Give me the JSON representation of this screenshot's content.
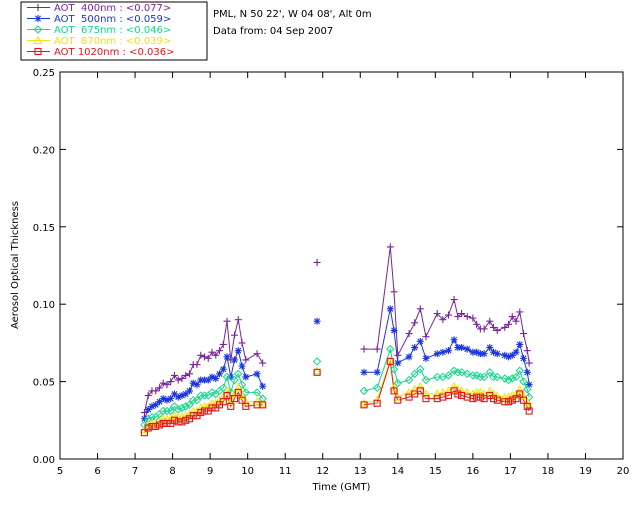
{
  "header": {
    "station": "PML, N 50 22', W 04 08', Alt 0m",
    "date_line": "Data from: 04 Sep 2007"
  },
  "chart_data": {
    "type": "scatter",
    "title": "",
    "xlabel": "Time (GMT)",
    "ylabel": "Aerosol Optical Thickness",
    "xlim": [
      5,
      20
    ],
    "ylim": [
      0,
      0.25
    ],
    "x_ticks": [
      5,
      6,
      7,
      8,
      9,
      10,
      11,
      12,
      13,
      14,
      15,
      16,
      17,
      18,
      19,
      20
    ],
    "y_ticks": [
      0.0,
      0.05,
      0.1,
      0.15,
      0.2,
      0.25
    ],
    "y_tick_labels": [
      "0.00",
      "0.05",
      "0.10",
      "0.15",
      "0.20",
      "0.25"
    ],
    "grid": false,
    "legend_position": "top-left, outside plot",
    "x": [
      7.25,
      7.35,
      7.45,
      7.55,
      7.65,
      7.75,
      7.85,
      7.95,
      8.05,
      8.15,
      8.25,
      8.35,
      8.45,
      8.55,
      8.65,
      8.75,
      8.85,
      8.95,
      9.05,
      9.15,
      9.25,
      9.35,
      9.45,
      9.55,
      9.65,
      9.75,
      9.85,
      9.95,
      10.25,
      10.4,
      11.85,
      13.1,
      13.45,
      13.8,
      13.9,
      14.0,
      14.3,
      14.45,
      14.6,
      14.75,
      15.05,
      15.2,
      15.35,
      15.5,
      15.6,
      15.7,
      15.85,
      16.0,
      16.1,
      16.2,
      16.3,
      16.45,
      16.55,
      16.65,
      16.85,
      16.95,
      17.05,
      17.15,
      17.25,
      17.35,
      17.45,
      17.5
    ],
    "series": [
      {
        "name": "AOT  400nm : <0.077>",
        "marker": "plus",
        "color": "#7a2596",
        "connected": true,
        "values": [
          0.03,
          0.041,
          0.044,
          0.044,
          0.046,
          0.049,
          0.048,
          0.05,
          0.054,
          0.051,
          0.052,
          0.054,
          0.055,
          0.061,
          0.061,
          0.067,
          0.066,
          0.065,
          0.069,
          0.067,
          0.07,
          0.074,
          0.089,
          0.064,
          0.08,
          0.09,
          0.075,
          0.064,
          0.068,
          0.062,
          0.127,
          0.071,
          0.071,
          0.137,
          0.108,
          0.067,
          0.081,
          0.088,
          0.097,
          0.079,
          0.094,
          0.09,
          0.093,
          0.103,
          0.092,
          0.094,
          0.092,
          0.091,
          0.087,
          0.084,
          0.084,
          0.089,
          0.085,
          0.083,
          0.085,
          0.087,
          0.092,
          0.089,
          0.095,
          0.081,
          0.07,
          0.062
        ]
      },
      {
        "name": "AOT  500nm : <0.059>",
        "marker": "asterisk",
        "color": "#1a35dd",
        "connected": true,
        "values": [
          0.026,
          0.032,
          0.034,
          0.035,
          0.037,
          0.039,
          0.038,
          0.039,
          0.042,
          0.04,
          0.041,
          0.042,
          0.044,
          0.049,
          0.048,
          0.051,
          0.051,
          0.051,
          0.053,
          0.052,
          0.055,
          0.058,
          0.066,
          0.053,
          0.064,
          0.07,
          0.06,
          0.053,
          0.055,
          0.047,
          0.089,
          0.056,
          0.056,
          0.097,
          0.083,
          0.062,
          0.066,
          0.072,
          0.076,
          0.065,
          0.068,
          0.069,
          0.07,
          0.077,
          0.072,
          0.072,
          0.071,
          0.069,
          0.069,
          0.068,
          0.068,
          0.072,
          0.069,
          0.068,
          0.067,
          0.066,
          0.067,
          0.069,
          0.074,
          0.065,
          0.056,
          0.048
        ]
      },
      {
        "name": "AOT  675nm : <0.046>",
        "marker": "diamond",
        "color": "#15d58a",
        "connected": true,
        "values": [
          0.022,
          0.026,
          0.027,
          0.027,
          0.029,
          0.031,
          0.031,
          0.031,
          0.034,
          0.032,
          0.033,
          0.034,
          0.035,
          0.038,
          0.038,
          0.041,
          0.041,
          0.041,
          0.043,
          0.042,
          0.044,
          0.046,
          0.053,
          0.043,
          0.051,
          0.055,
          0.048,
          0.043,
          0.043,
          0.039,
          0.063,
          0.044,
          0.046,
          0.071,
          0.058,
          0.049,
          0.051,
          0.055,
          0.058,
          0.051,
          0.053,
          0.053,
          0.054,
          0.057,
          0.056,
          0.056,
          0.055,
          0.054,
          0.054,
          0.053,
          0.053,
          0.056,
          0.053,
          0.053,
          0.052,
          0.051,
          0.052,
          0.053,
          0.057,
          0.05,
          0.045,
          0.04
        ]
      },
      {
        "name": "AOT  870nm : <0.039>",
        "marker": "triangle",
        "color": "#f2e00f",
        "connected": true,
        "values": [
          0.019,
          0.022,
          0.023,
          0.023,
          0.024,
          0.026,
          0.026,
          0.026,
          0.028,
          0.027,
          0.027,
          0.028,
          0.029,
          0.031,
          0.031,
          0.033,
          0.034,
          0.034,
          0.036,
          0.036,
          0.038,
          0.04,
          0.044,
          0.037,
          0.042,
          0.046,
          0.041,
          0.037,
          0.037,
          0.036,
          0.057,
          0.036,
          0.038,
          0.064,
          0.046,
          0.04,
          0.043,
          0.045,
          0.047,
          0.042,
          0.042,
          0.043,
          0.044,
          0.047,
          0.045,
          0.044,
          0.043,
          0.042,
          0.043,
          0.043,
          0.042,
          0.044,
          0.042,
          0.041,
          0.04,
          0.04,
          0.041,
          0.042,
          0.045,
          0.041,
          0.037,
          0.034
        ]
      },
      {
        "name": "AOT 1020nm : <0.036>",
        "marker": "square",
        "color": "#e0161b",
        "connected": true,
        "values": [
          0.017,
          0.02,
          0.021,
          0.021,
          0.022,
          0.023,
          0.023,
          0.023,
          0.025,
          0.024,
          0.024,
          0.025,
          0.026,
          0.028,
          0.028,
          0.03,
          0.031,
          0.031,
          0.033,
          0.033,
          0.035,
          0.037,
          0.041,
          0.034,
          0.039,
          0.043,
          0.038,
          0.034,
          0.035,
          0.035,
          0.056,
          0.035,
          0.036,
          0.063,
          0.044,
          0.038,
          0.04,
          0.042,
          0.044,
          0.039,
          0.039,
          0.04,
          0.041,
          0.044,
          0.042,
          0.041,
          0.04,
          0.039,
          0.04,
          0.04,
          0.039,
          0.041,
          0.039,
          0.038,
          0.037,
          0.037,
          0.038,
          0.039,
          0.042,
          0.038,
          0.034,
          0.031
        ]
      }
    ]
  }
}
